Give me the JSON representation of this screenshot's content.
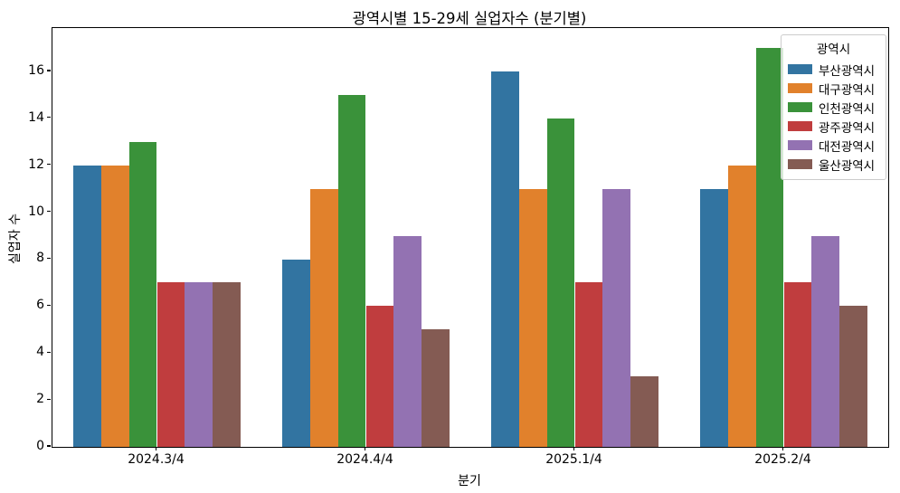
{
  "chart_data": {
    "type": "bar",
    "title": "광역시별 15-29세 실업자수 (분기별)",
    "xlabel": "분기",
    "ylabel": "실업자 수",
    "categories": [
      "2024.3/4",
      "2024.4/4",
      "2025.1/4",
      "2025.2/4"
    ],
    "series": [
      {
        "name": "부산광역시",
        "color": "#3274a1",
        "values": [
          12,
          8,
          16,
          11
        ]
      },
      {
        "name": "대구광역시",
        "color": "#e1812c",
        "values": [
          12,
          11,
          11,
          12
        ]
      },
      {
        "name": "인천광역시",
        "color": "#3a923a",
        "values": [
          13,
          15,
          14,
          17
        ]
      },
      {
        "name": "광주광역시",
        "color": "#c03d3e",
        "values": [
          7,
          6,
          7,
          7
        ]
      },
      {
        "name": "대전광역시",
        "color": "#9372b2",
        "values": [
          7,
          9,
          11,
          9
        ]
      },
      {
        "name": "울산광역시",
        "color": "#845b53",
        "values": [
          7,
          5,
          3,
          6
        ]
      }
    ],
    "ylim": [
      0,
      17.85
    ],
    "yticks": [
      0,
      2,
      4,
      6,
      8,
      10,
      12,
      14,
      16
    ],
    "legend_title": "광역시",
    "legend_position": "upper right",
    "grid": false,
    "group_width_fraction": 0.8
  }
}
